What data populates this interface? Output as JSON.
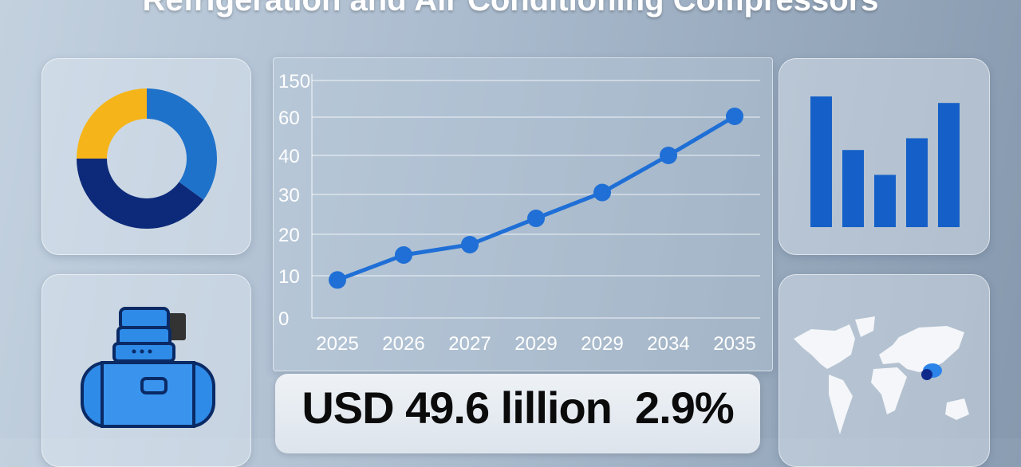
{
  "title": "Refrigeration and Air Conditioning Compressors",
  "headline": {
    "value": "USD 49.6 lillion",
    "rate": "2.9%"
  },
  "colors": {
    "accent": "#1f6fd6",
    "navy": "#0d2a7a",
    "yellow": "#f5b51a",
    "bar": "#1560c8"
  },
  "donut": {
    "segments": [
      {
        "color": "#1f72c9",
        "share": 35
      },
      {
        "color": "#0d2a7a",
        "share": 40
      },
      {
        "color": "#f5b51a",
        "share": 25
      }
    ]
  },
  "mini_bars": {
    "values": [
      100,
      59,
      40,
      68,
      95
    ]
  },
  "icons": {
    "compressor": "compressor-icon",
    "map": "world-map-icon"
  },
  "chart_data": {
    "type": "line",
    "categories": [
      "2025",
      "2026",
      "2027",
      "2029",
      "2029",
      "2034",
      "2035"
    ],
    "values": [
      9,
      15,
      17.5,
      24,
      30.5,
      40,
      62
    ],
    "yticks": [
      "0",
      "10",
      "20",
      "30",
      "40",
      "60",
      "150"
    ],
    "grid": true,
    "title": "",
    "xlabel": "",
    "ylabel": ""
  }
}
